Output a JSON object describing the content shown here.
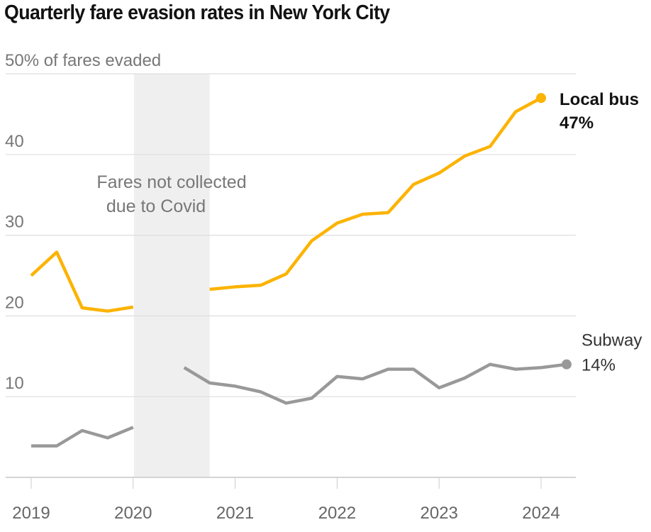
{
  "chart_data": {
    "type": "line",
    "title": "Quarterly fare evasion rates in New York City",
    "ylabel": "50% of fares evaded",
    "ylim": [
      0,
      50
    ],
    "yticks": [
      0,
      10,
      20,
      30,
      40,
      50
    ],
    "ytick_labels": [
      "",
      "10",
      "20",
      "30",
      "40",
      "50% of fares evaded"
    ],
    "grid": true,
    "xlim": [
      "2019 Q1",
      "2024 Q2"
    ],
    "xticks": [
      "2019",
      "2020",
      "2021",
      "2022",
      "2023",
      "2024"
    ],
    "shaded_region": {
      "from": "2020 Q1",
      "to": "2020 Q4",
      "label_lines": [
        "Fares not collected",
        "due to Covid"
      ],
      "color": "#efefef"
    },
    "series": [
      {
        "name": "Local bus",
        "end_label": "Local bus",
        "end_value_label": "47%",
        "color": "#fcb300",
        "quarters": [
          "2019 Q1",
          "2019 Q2",
          "2019 Q3",
          "2019 Q4",
          "2020 Q1",
          "2020 Q2",
          "2020 Q3",
          "2020 Q4",
          "2021 Q1",
          "2021 Q2",
          "2021 Q3",
          "2021 Q4",
          "2022 Q1",
          "2022 Q2",
          "2022 Q3",
          "2022 Q4",
          "2023 Q1",
          "2023 Q2",
          "2023 Q3",
          "2023 Q4",
          "2024 Q1"
        ],
        "values": [
          25.0,
          27.9,
          21.0,
          20.6,
          21.1,
          null,
          null,
          23.3,
          23.6,
          23.8,
          25.2,
          29.3,
          31.5,
          32.6,
          32.8,
          36.3,
          37.7,
          39.8,
          41.0,
          45.3,
          47.0
        ]
      },
      {
        "name": "Subway",
        "end_label": "Subway",
        "end_value_label": "14%",
        "color": "#999999",
        "quarters": [
          "2019 Q1",
          "2019 Q2",
          "2019 Q3",
          "2019 Q4",
          "2020 Q1",
          "2020 Q2",
          "2020 Q3",
          "2020 Q4",
          "2021 Q1",
          "2021 Q2",
          "2021 Q3",
          "2021 Q4",
          "2022 Q1",
          "2022 Q2",
          "2022 Q3",
          "2022 Q4",
          "2023 Q1",
          "2023 Q2",
          "2023 Q3",
          "2023 Q4",
          "2024 Q1",
          "2024 Q2"
        ],
        "values": [
          3.9,
          3.9,
          5.8,
          4.9,
          6.2,
          null,
          13.6,
          11.7,
          11.3,
          10.6,
          9.2,
          9.8,
          12.5,
          12.2,
          13.4,
          13.4,
          11.1,
          12.3,
          14.0,
          13.4,
          13.6,
          14.0
        ]
      }
    ]
  }
}
